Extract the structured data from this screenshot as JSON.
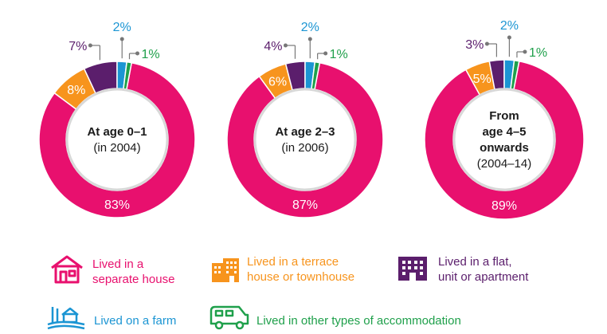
{
  "colors": {
    "separate_house": "#e8106e",
    "terrace_house": "#f7941d",
    "flat_unit_apartment": "#5b1e6c",
    "farm": "#1b95d3",
    "other": "#1fa04b"
  },
  "chart_data": [
    {
      "type": "donut",
      "center_label": [
        "At age 0–1",
        "(in 2004)"
      ],
      "slices": [
        {
          "category": "separate_house",
          "value": 83,
          "label": "83%"
        },
        {
          "category": "terrace_house",
          "value": 8,
          "label": "8%"
        },
        {
          "category": "flat_unit_apartment",
          "value": 7,
          "label": "7%"
        },
        {
          "category": "farm",
          "value": 2,
          "label": "2%"
        },
        {
          "category": "other",
          "value": 1,
          "label": "1%"
        }
      ]
    },
    {
      "type": "donut",
      "center_label": [
        "At age 2–3",
        "(in 2006)"
      ],
      "slices": [
        {
          "category": "separate_house",
          "value": 87,
          "label": "87%"
        },
        {
          "category": "terrace_house",
          "value": 6,
          "label": "6%"
        },
        {
          "category": "flat_unit_apartment",
          "value": 4,
          "label": "4%"
        },
        {
          "category": "farm",
          "value": 2,
          "label": "2%"
        },
        {
          "category": "other",
          "value": 1,
          "label": "1%"
        }
      ]
    },
    {
      "type": "donut",
      "center_label": [
        "From",
        "age 4–5",
        "onwards",
        "(2004–14)"
      ],
      "slices": [
        {
          "category": "separate_house",
          "value": 89,
          "label": "89%"
        },
        {
          "category": "terrace_house",
          "value": 5,
          "label": "5%"
        },
        {
          "category": "flat_unit_apartment",
          "value": 3,
          "label": "3%"
        },
        {
          "category": "farm",
          "value": 2,
          "label": "2%"
        },
        {
          "category": "other",
          "value": 1,
          "label": "1%"
        }
      ]
    }
  ],
  "legend": {
    "separate_house": "Lived in a\nseparate house",
    "terrace_house": "Lived in a terrace\nhouse or townhouse",
    "flat_unit_apartment": "Lived in a flat,\nunit or apartment",
    "farm": "Lived on a farm",
    "other": "Lived in other types of accommodation"
  },
  "icons": {
    "separate_house": "house-icon",
    "terrace_house": "townhouse-icon",
    "flat_unit_apartment": "apartment-icon",
    "farm": "farm-icon",
    "other": "caravan-icon"
  }
}
